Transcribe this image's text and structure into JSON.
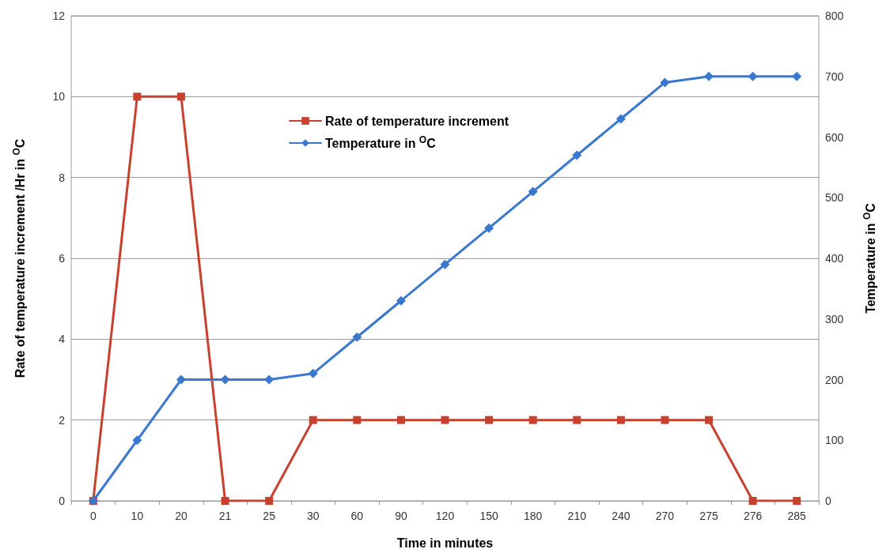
{
  "chart_data": {
    "type": "line",
    "xlabel": "Time in minutes",
    "ylabel": "Rate of temperature increment /Hr in $^{O}$C",
    "y2label": "Temperature in $^{O}$C",
    "categories": [
      "0",
      "10",
      "20",
      "21",
      "25",
      "30",
      "60",
      "90",
      "120",
      "150",
      "180",
      "210",
      "240",
      "270",
      "275",
      "276",
      "285"
    ],
    "series": [
      {
        "name": "Rate of temperature increment",
        "color": "#c8402e",
        "marker": "square",
        "values": [
          0,
          10,
          10,
          0,
          0,
          2,
          2,
          2,
          2,
          2,
          2,
          2,
          2,
          2,
          2,
          0,
          0
        ]
      },
      {
        "name": "Temperature in $^{O}$C",
        "color": "#3a78d0",
        "marker": "diamond",
        "axis": "y2",
        "values": [
          0,
          100,
          200,
          200,
          200,
          210,
          270,
          330,
          390,
          450,
          510,
          570,
          630,
          690,
          700,
          700,
          700
        ]
      }
    ],
    "ylim": [
      0,
      12
    ],
    "yticks": [
      0,
      2,
      4,
      6,
      8,
      10,
      12
    ],
    "y2lim": [
      0,
      800
    ],
    "y2ticks": [
      0,
      100,
      200,
      300,
      400,
      500,
      600,
      700,
      800
    ],
    "grid": "y",
    "legend": "top",
    "line_style": "solid"
  }
}
